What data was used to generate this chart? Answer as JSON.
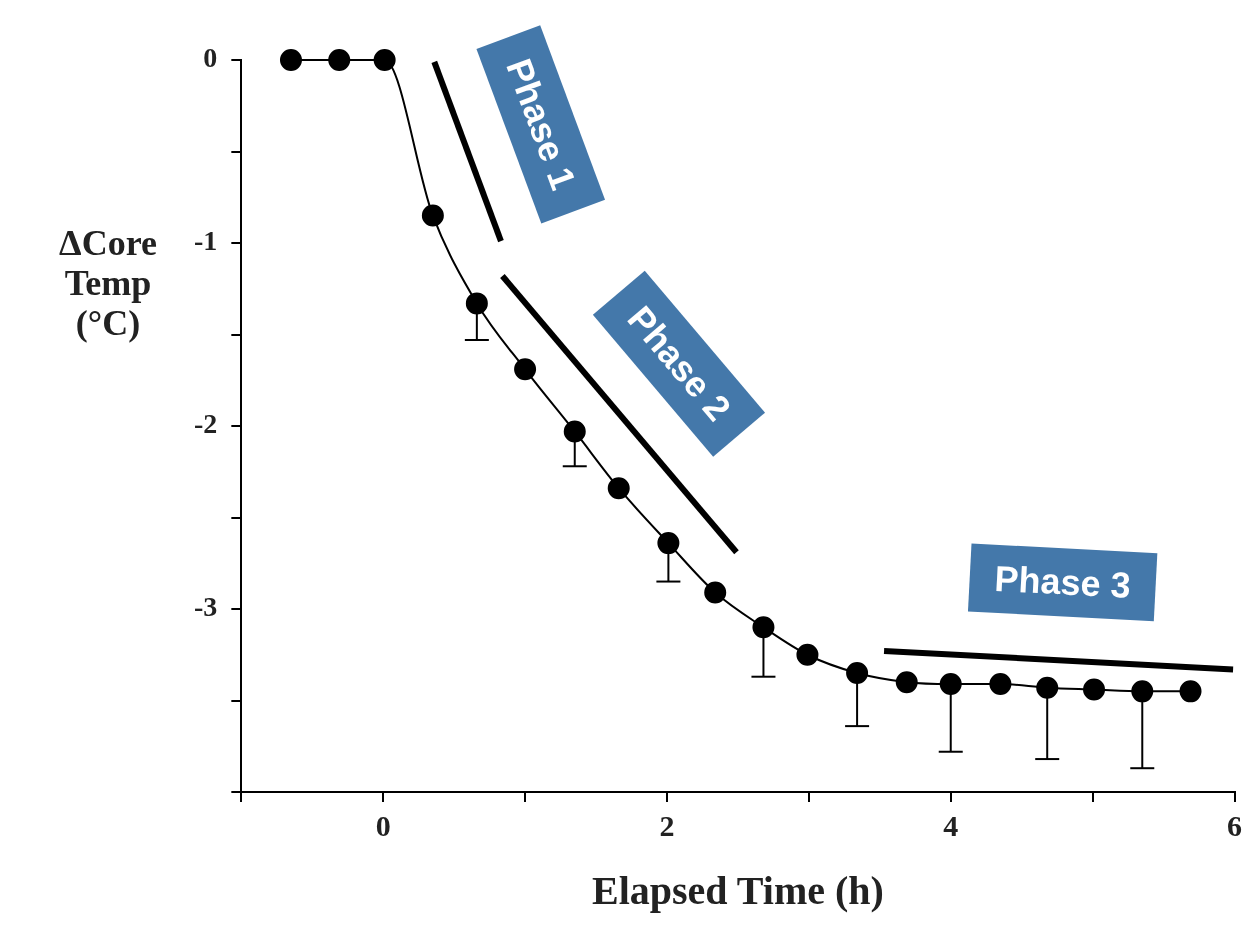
{
  "chart_data": {
    "type": "line",
    "xlabel": "Elapsed Time (h)",
    "ylabel": "ΔCore Temp (°C)",
    "xlim": [
      -1,
      6
    ],
    "xticks": [
      {
        "value": -1,
        "label": null
      },
      0,
      {
        "value": 1,
        "label": null
      },
      2,
      {
        "value": 3,
        "label": null
      },
      4,
      {
        "value": 5,
        "label": null
      },
      6
    ],
    "ylim": [
      -4,
      0
    ],
    "yticks": [
      0,
      {
        "value": -0.5,
        "label": null
      },
      -1,
      {
        "value": -1.5,
        "label": null
      },
      -2,
      {
        "value": -2.5,
        "label": null
      },
      -3,
      {
        "value": -3.5,
        "label": null
      },
      {
        "value": -4,
        "label": null
      }
    ],
    "grid": false,
    "legend": false,
    "marker": "circle",
    "series": [
      {
        "color": "#000000",
        "x": [
          -0.65,
          -0.31,
          0.01,
          0.35,
          0.66,
          1.0,
          1.35,
          1.66,
          2.01,
          2.34,
          2.68,
          2.99,
          3.34,
          3.69,
          4.0,
          4.35,
          4.68,
          5.01,
          5.35,
          5.69
        ],
        "values": [
          0,
          0,
          0,
          -0.85,
          -1.33,
          -1.69,
          -2.03,
          -2.34,
          -2.64,
          -2.91,
          -3.1,
          -3.25,
          -3.35,
          -3.4,
          -3.41,
          -3.41,
          -3.43,
          -3.44,
          -3.45,
          -3.45
        ],
        "errors": [
          null,
          null,
          null,
          null,
          [
            -1.53,
            -1.33
          ],
          null,
          [
            -2.22,
            -2.03
          ],
          null,
          [
            -2.85,
            -2.64
          ],
          null,
          [
            -3.37,
            -3.1
          ],
          null,
          [
            -3.64,
            -3.35
          ],
          null,
          [
            -3.78,
            -3.41
          ],
          null,
          [
            -3.82,
            -3.43
          ],
          null,
          [
            -3.87,
            -3.45
          ],
          null
        ]
      },
      {
        "type": "line",
        "marker": "none",
        "color": "#000000",
        "x": [
          0.36,
          0.83
        ],
        "values": [
          -0.01,
          -0.99
        ]
      },
      {
        "type": "line",
        "marker": "none",
        "color": "#000000",
        "x": [
          0.84,
          2.49
        ],
        "values": [
          -1.18,
          -2.69
        ]
      },
      {
        "type": "line",
        "marker": "none",
        "color": "#000000",
        "x": [
          3.53,
          5.99
        ],
        "values": [
          -3.23,
          -3.33
        ]
      }
    ],
    "annotations": [
      "Phase 1",
      "Phase 2",
      "Phase 3"
    ]
  }
}
